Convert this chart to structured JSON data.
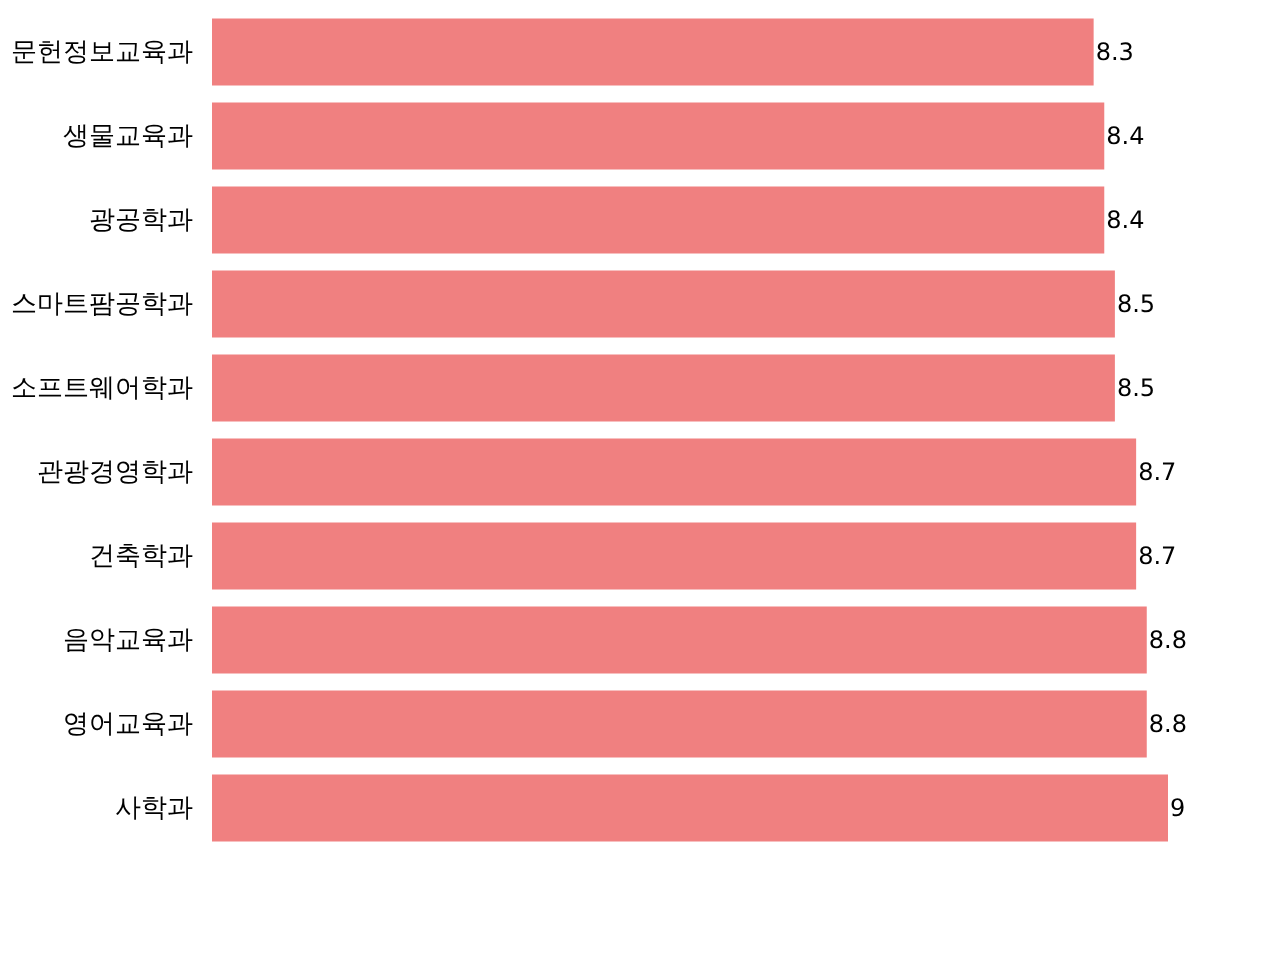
{
  "chart_data": {
    "type": "bar",
    "orientation": "horizontal",
    "categories": [
      "문헌정보교육과",
      "생물교육과",
      "광공학과",
      "스마트팜공학과",
      "소프트웨어학과",
      "관광경영학과",
      "건축학과",
      "음악교육과",
      "영어교육과",
      "사학과"
    ],
    "values": [
      8.3,
      8.4,
      8.4,
      8.5,
      8.5,
      8.7,
      8.7,
      8.8,
      8.8,
      9
    ],
    "color": "#f08080",
    "data_labels": true,
    "tick_labels": "y",
    "grid": false
  }
}
